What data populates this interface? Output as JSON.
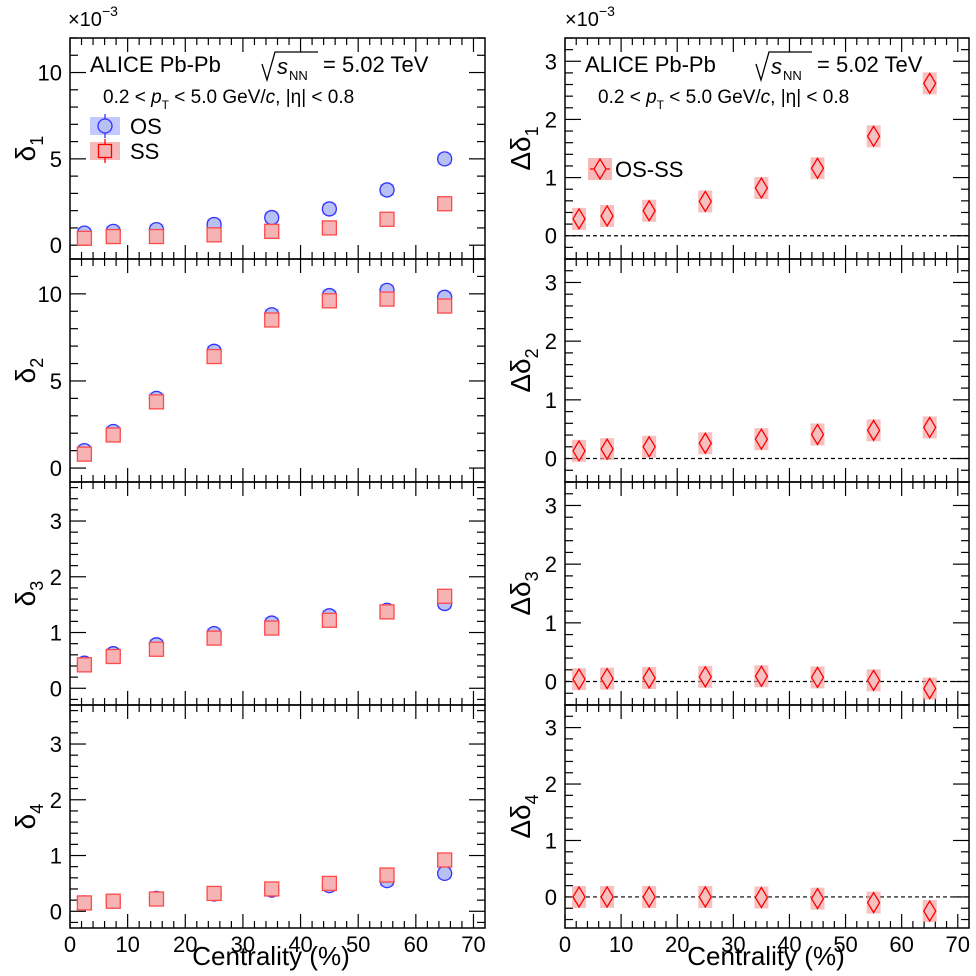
{
  "figure": {
    "header_left": "ALICE Pb-Pb",
    "header_right": "ALICE Pb-Pb",
    "energy_sqrt": "s",
    "energy_sub": "NN",
    "energy_value": "= 5.02 TeV",
    "cuts_line": "0.2 < p_T < 5.0 GeV/c, |η| < 0.8",
    "scale_left": "×10",
    "scale_right": "×10",
    "scale_exp": "−3",
    "xlabel": "Centrality (%)"
  },
  "chart_data": [
    {
      "type": "scatter",
      "panel": "left-1",
      "ylabel": "δ1",
      "xlim": [
        0,
        72
      ],
      "ylim": [
        -0.8,
        12
      ],
      "yticks": [
        0,
        5,
        10
      ],
      "x": [
        2.5,
        7.5,
        15,
        25,
        35,
        45,
        55,
        65
      ],
      "series": [
        {
          "name": "OS",
          "values": [
            0.7,
            0.8,
            0.9,
            1.2,
            1.6,
            2.1,
            3.2,
            5.0
          ],
          "color": "#3333ff",
          "marker": "circle"
        },
        {
          "name": "SS",
          "values": [
            0.4,
            0.5,
            0.5,
            0.6,
            0.8,
            1.0,
            1.5,
            2.4
          ],
          "color": "#ff0000",
          "marker": "square"
        }
      ],
      "legend": "top-left"
    },
    {
      "type": "scatter",
      "panel": "left-2",
      "ylabel": "δ2",
      "xlim": [
        0,
        72
      ],
      "ylim": [
        -0.8,
        12
      ],
      "yticks": [
        0,
        5,
        10
      ],
      "x": [
        2.5,
        7.5,
        15,
        25,
        35,
        45,
        55,
        65
      ],
      "series": [
        {
          "name": "OS",
          "values": [
            1.0,
            2.1,
            4.0,
            6.7,
            8.8,
            9.9,
            10.2,
            9.8
          ],
          "color": "#3333ff",
          "marker": "circle"
        },
        {
          "name": "SS",
          "values": [
            0.8,
            1.9,
            3.8,
            6.4,
            8.5,
            9.6,
            9.7,
            9.3
          ],
          "color": "#ff0000",
          "marker": "square"
        }
      ]
    },
    {
      "type": "scatter",
      "panel": "left-3",
      "ylabel": "δ3",
      "xlim": [
        0,
        72
      ],
      "ylim": [
        -0.3,
        3.7
      ],
      "yticks": [
        0,
        1,
        2,
        3
      ],
      "x": [
        2.5,
        7.5,
        15,
        25,
        35,
        45,
        55,
        65
      ],
      "series": [
        {
          "name": "OS",
          "values": [
            0.45,
            0.62,
            0.78,
            0.98,
            1.17,
            1.3,
            1.4,
            1.52
          ],
          "color": "#3333ff",
          "marker": "circle"
        },
        {
          "name": "SS",
          "values": [
            0.42,
            0.57,
            0.7,
            0.9,
            1.08,
            1.22,
            1.37,
            1.65
          ],
          "color": "#ff0000",
          "marker": "square"
        }
      ]
    },
    {
      "type": "scatter",
      "panel": "left-4",
      "ylabel": "δ4",
      "xlim": [
        0,
        72
      ],
      "ylim": [
        -0.3,
        3.7
      ],
      "yticks": [
        0,
        1,
        2,
        3
      ],
      "x": [
        2.5,
        7.5,
        15,
        25,
        35,
        45,
        55,
        65
      ],
      "series": [
        {
          "name": "OS",
          "values": [
            0.15,
            0.18,
            0.23,
            0.31,
            0.38,
            0.46,
            0.55,
            0.68
          ],
          "color": "#3333ff",
          "marker": "circle"
        },
        {
          "name": "SS",
          "values": [
            0.15,
            0.18,
            0.22,
            0.32,
            0.4,
            0.5,
            0.65,
            0.92
          ],
          "color": "#ff0000",
          "marker": "square"
        }
      ]
    },
    {
      "type": "scatter",
      "panel": "right-1",
      "ylabel": "Δδ1",
      "xlim": [
        0,
        72
      ],
      "ylim": [
        -0.4,
        3.4
      ],
      "yticks": [
        0,
        1,
        2,
        3
      ],
      "x": [
        2.5,
        7.5,
        15,
        25,
        35,
        45,
        55,
        65
      ],
      "series": [
        {
          "name": "OS-SS",
          "values": [
            0.29,
            0.34,
            0.43,
            0.59,
            0.82,
            1.16,
            1.71,
            2.62
          ],
          "color": "#ff0000",
          "marker": "diamond"
        }
      ],
      "legend": "middle-left"
    },
    {
      "type": "scatter",
      "panel": "right-2",
      "ylabel": "Δδ2",
      "xlim": [
        0,
        72
      ],
      "ylim": [
        -0.4,
        3.4
      ],
      "yticks": [
        0,
        1,
        2,
        3
      ],
      "x": [
        2.5,
        7.5,
        15,
        25,
        35,
        45,
        55,
        65
      ],
      "series": [
        {
          "name": "OS-SS",
          "values": [
            0.13,
            0.16,
            0.2,
            0.26,
            0.33,
            0.41,
            0.48,
            0.53
          ],
          "color": "#ff0000",
          "marker": "diamond"
        }
      ]
    },
    {
      "type": "scatter",
      "panel": "right-3",
      "ylabel": "Δδ3",
      "xlim": [
        0,
        72
      ],
      "ylim": [
        -0.4,
        3.4
      ],
      "yticks": [
        0,
        1,
        2,
        3
      ],
      "x": [
        2.5,
        7.5,
        15,
        25,
        35,
        45,
        55,
        65
      ],
      "series": [
        {
          "name": "OS-SS",
          "values": [
            0.04,
            0.05,
            0.06,
            0.08,
            0.09,
            0.07,
            0.02,
            -0.12
          ],
          "color": "#ff0000",
          "marker": "diamond"
        }
      ]
    },
    {
      "type": "scatter",
      "panel": "right-4",
      "ylabel": "Δδ4",
      "xlim": [
        0,
        72
      ],
      "ylim": [
        -0.55,
        3.4
      ],
      "yticks": [
        0,
        1,
        2,
        3
      ],
      "x": [
        2.5,
        7.5,
        15,
        25,
        35,
        45,
        55,
        65
      ],
      "series": [
        {
          "name": "OS-SS",
          "values": [
            0.0,
            0.0,
            0.0,
            0.0,
            -0.01,
            -0.03,
            -0.1,
            -0.25
          ],
          "color": "#ff0000",
          "marker": "diamond"
        }
      ]
    }
  ],
  "xticks": [
    0,
    10,
    20,
    30,
    40,
    50,
    60,
    70
  ]
}
